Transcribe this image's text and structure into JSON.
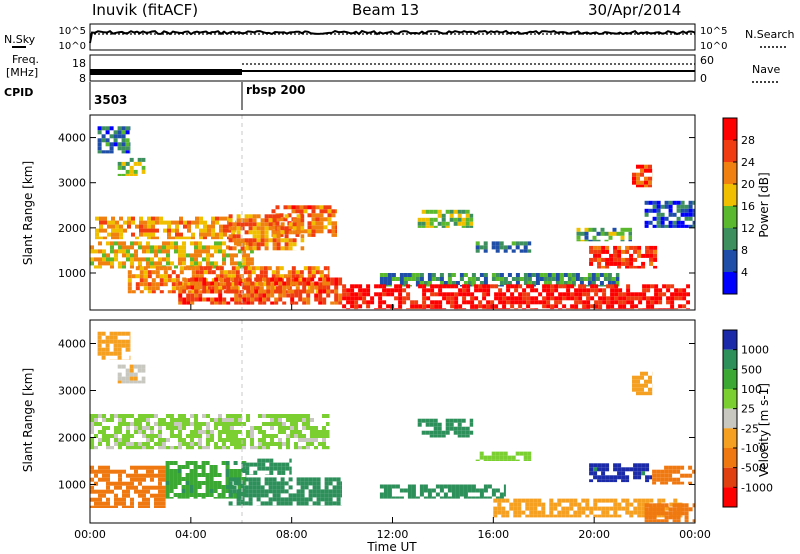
{
  "header": {
    "station": "Inuvik (fitACF)",
    "beam": "Beam 13",
    "date": "30/Apr/2014"
  },
  "colors": {
    "power": [
      "#0000ff",
      "#1f4ea8",
      "#3e8f5e",
      "#5ab82e",
      "#f0c000",
      "#f08010",
      "#f03c10",
      "#ff0000"
    ],
    "velocity": [
      "#1a2aa8",
      "#2d8f5a",
      "#3aa832",
      "#7ccf30",
      "#c8c8c0",
      "#f5a020",
      "#f07810",
      "#e04010",
      "#ff0000"
    ]
  },
  "top_panels": {
    "nsky_label": "N.Sky",
    "nsearch_label": "N.Search",
    "noise_ticks_left": [
      "10^5",
      "10^0"
    ],
    "noise_ticks_right": [
      "10^5",
      "10^0"
    ],
    "freq_label_1": "Freq.",
    "freq_label_2": "[MHz]",
    "freq_ticks_left": [
      "18",
      "8"
    ],
    "nave_label": "Nave",
    "nave_ticks_right": [
      "60",
      "0"
    ],
    "cpid_label": "CPID",
    "cpid_1": "3503",
    "cpid_2": "rbsp 200"
  },
  "chart_data": [
    {
      "type": "heatmap",
      "title": "Power",
      "ylabel": "Slant Range [km]",
      "yticks": [
        "1000",
        "2000",
        "3000",
        "4000"
      ],
      "ylim": [
        180,
        4500
      ],
      "xlim": [
        "00:00",
        "24:00"
      ],
      "colorbar_label": "Power [dB]",
      "colorbar_ticks": [
        "4",
        "8",
        "12",
        "16",
        "20",
        "24",
        "28"
      ],
      "colorbar_range": [
        0,
        32
      ],
      "patches": [
        {
          "t": [
            0.3,
            1.6
          ],
          "r": [
            3650,
            4250
          ],
          "v": 8
        },
        {
          "t": [
            1.1,
            2.2
          ],
          "r": [
            3150,
            3550
          ],
          "v": 15
        },
        {
          "t": [
            0.2,
            5.8
          ],
          "r": [
            1750,
            2250
          ],
          "v": 21
        },
        {
          "t": [
            0.0,
            6.5
          ],
          "r": [
            1100,
            1700
          ],
          "v": 19
        },
        {
          "t": [
            1.5,
            9.5
          ],
          "r": [
            550,
            1150
          ],
          "v": 23
        },
        {
          "t": [
            3.5,
            10.0
          ],
          "r": [
            300,
            900
          ],
          "v": 25
        },
        {
          "t": [
            7.2,
            9.8
          ],
          "r": [
            1800,
            2500
          ],
          "v": 24
        },
        {
          "t": [
            5.5,
            8.5
          ],
          "r": [
            1500,
            2300
          ],
          "v": 22
        },
        {
          "t": [
            13.0,
            15.2
          ],
          "r": [
            2000,
            2400
          ],
          "v": 14
        },
        {
          "t": [
            15.3,
            17.5
          ],
          "r": [
            1450,
            1700
          ],
          "v": 9
        },
        {
          "t": [
            11.5,
            21.0
          ],
          "r": [
            700,
            1000
          ],
          "v": 10
        },
        {
          "t": [
            10.0,
            23.8
          ],
          "r": [
            200,
            750
          ],
          "v": 30
        },
        {
          "t": [
            19.8,
            22.5
          ],
          "r": [
            1100,
            1600
          ],
          "v": 27
        },
        {
          "t": [
            19.3,
            21.5
          ],
          "r": [
            1700,
            2000
          ],
          "v": 12
        },
        {
          "t": [
            22.0,
            24.0
          ],
          "r": [
            2000,
            2600
          ],
          "v": 6
        },
        {
          "t": [
            21.5,
            22.3
          ],
          "r": [
            2900,
            3400
          ],
          "v": 26
        }
      ]
    },
    {
      "type": "heatmap",
      "title": "Velocity",
      "ylabel": "Slant Range [km]",
      "xlabel": "Time UT",
      "yticks": [
        "1000",
        "2000",
        "3000",
        "4000"
      ],
      "ylim": [
        180,
        4500
      ],
      "xticks": [
        "00:00",
        "04:00",
        "08:00",
        "12:00",
        "16:00",
        "20:00",
        "00:00"
      ],
      "xlim": [
        "00:00",
        "24:00"
      ],
      "colorbar_label": "Velocity [m s-1]",
      "colorbar_ticks": [
        "1000",
        "500",
        "100",
        "25",
        "-25",
        "-100",
        "-500",
        "-1000"
      ],
      "patches": [
        {
          "t": [
            0.3,
            1.6
          ],
          "r": [
            3650,
            4250
          ],
          "v": -50
        },
        {
          "t": [
            1.1,
            2.2
          ],
          "r": [
            3150,
            3550
          ],
          "v": -20
        },
        {
          "t": [
            0.0,
            9.5
          ],
          "r": [
            1750,
            2500
          ],
          "v": 5
        },
        {
          "t": [
            0.0,
            3.0
          ],
          "r": [
            500,
            1400
          ],
          "v": -150
        },
        {
          "t": [
            3.0,
            6.2
          ],
          "r": [
            700,
            1500
          ],
          "v": 80
        },
        {
          "t": [
            5.5,
            10.0
          ],
          "r": [
            550,
            1150
          ],
          "v": 200
        },
        {
          "t": [
            6.0,
            8.0
          ],
          "r": [
            1200,
            1550
          ],
          "v": 150
        },
        {
          "t": [
            13.0,
            15.2
          ],
          "r": [
            2000,
            2400
          ],
          "v": 250
        },
        {
          "t": [
            15.3,
            17.5
          ],
          "r": [
            1500,
            1700
          ],
          "v": 10
        },
        {
          "t": [
            11.5,
            16.5
          ],
          "r": [
            700,
            1000
          ],
          "v": 300
        },
        {
          "t": [
            16.0,
            23.5
          ],
          "r": [
            300,
            700
          ],
          "v": -60
        },
        {
          "t": [
            19.8,
            22.3
          ],
          "r": [
            1050,
            1450
          ],
          "v": 700
        },
        {
          "t": [
            22.3,
            24.0
          ],
          "r": [
            1000,
            1400
          ],
          "v": -300
        },
        {
          "t": [
            22.0,
            24.0
          ],
          "r": [
            200,
            600
          ],
          "v": -150
        },
        {
          "t": [
            21.5,
            22.3
          ],
          "r": [
            2900,
            3400
          ],
          "v": -80
        }
      ]
    }
  ]
}
